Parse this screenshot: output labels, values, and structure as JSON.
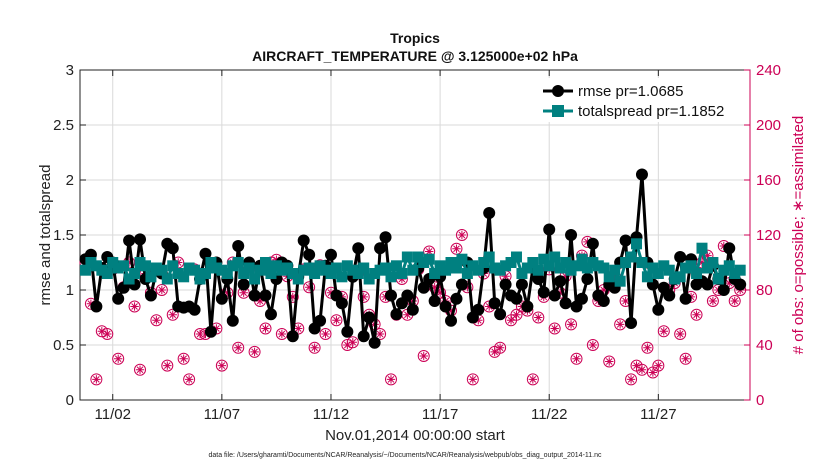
{
  "chart_data": {
    "type": "line",
    "title": "Tropics",
    "subtitle": "AIRCRAFT_TEMPERATURE @ 3.125000e+02 hPa",
    "xlabel": "Nov.01,2014 00:00:00 start",
    "ylabel": "rmse and totalspread",
    "ylabel_right": "# of obs: o=possible; ∗=assimilated",
    "footnote": "data file: /Users/gharamti/Documents/NCAR/Reanalysis/~/Documents/NCAR/Reanalysis/webpub/obs_diag_output_2014-11.nc",
    "xlim": [
      0.5,
      31.2
    ],
    "ylim": [
      0,
      3
    ],
    "ylim_right": [
      0,
      240
    ],
    "x_ticks": [
      2,
      7,
      12,
      17,
      22,
      27
    ],
    "x_ticklabels": [
      "11/02",
      "11/07",
      "11/12",
      "11/17",
      "11/22",
      "11/27"
    ],
    "y_ticks": [
      0,
      0.5,
      1,
      1.5,
      2,
      2.5,
      3
    ],
    "y_ticklabels": [
      "0",
      "0.5",
      "1",
      "1.5",
      "2",
      "2.5",
      "3"
    ],
    "y_right_ticks": [
      0,
      40,
      80,
      120,
      160,
      200,
      240
    ],
    "y_right_ticklabels": [
      "0",
      "40",
      "80",
      "120",
      "160",
      "200",
      "240"
    ],
    "legend_position": "top-right",
    "colors": {
      "rmse": "#000000",
      "totalspread": "#008080",
      "obs": "#cc0055"
    },
    "series": [
      {
        "name": "rmse",
        "legend": "rmse pr=1.0685",
        "axis": "left",
        "marker": "circle",
        "x": [
          0.75,
          1.0,
          1.25,
          1.5,
          1.75,
          2.0,
          2.25,
          2.5,
          2.75,
          3.0,
          3.25,
          3.5,
          3.75,
          4.0,
          4.25,
          4.5,
          4.75,
          5.0,
          5.25,
          5.5,
          5.75,
          6.0,
          6.25,
          6.5,
          6.75,
          7.0,
          7.25,
          7.5,
          7.75,
          8.0,
          8.25,
          8.5,
          8.75,
          9.0,
          9.25,
          9.5,
          9.75,
          10.0,
          10.25,
          10.5,
          10.75,
          11.0,
          11.25,
          11.5,
          11.75,
          12.0,
          12.25,
          12.5,
          12.75,
          13.0,
          13.25,
          13.5,
          13.75,
          14.0,
          14.25,
          14.5,
          14.75,
          15.0,
          15.25,
          15.5,
          15.75,
          16.0,
          16.25,
          16.5,
          16.75,
          17.0,
          17.25,
          17.5,
          17.75,
          18.0,
          18.25,
          18.5,
          18.75,
          19.0,
          19.25,
          19.5,
          19.75,
          20.0,
          20.25,
          20.5,
          20.75,
          21.0,
          21.25,
          21.5,
          21.75,
          22.0,
          22.25,
          22.5,
          22.75,
          23.0,
          23.25,
          23.5,
          23.75,
          24.0,
          24.25,
          24.5,
          24.75,
          25.0,
          25.25,
          25.5,
          25.75,
          26.0,
          26.25,
          26.5,
          26.75,
          27.0,
          27.25,
          27.5,
          27.75,
          28.0,
          28.25,
          28.5,
          28.75,
          29.0,
          29.25,
          29.5,
          29.75,
          30.0,
          30.25,
          30.5,
          30.75
        ],
        "values": [
          1.28,
          1.32,
          0.85,
          1.2,
          1.3,
          1.25,
          0.92,
          1.02,
          1.45,
          1.05,
          1.46,
          1.1,
          0.95,
          1.18,
          1.15,
          1.42,
          1.38,
          0.85,
          0.84,
          0.85,
          0.82,
          1.1,
          1.33,
          0.62,
          1.25,
          0.92,
          1.1,
          0.72,
          1.4,
          1.05,
          1.25,
          0.95,
          1.22,
          0.95,
          0.78,
          1.1,
          1.25,
          1.22,
          0.58,
          1.12,
          1.45,
          1.32,
          0.65,
          0.72,
          1.22,
          1.32,
          0.95,
          0.88,
          0.62,
          1.12,
          1.38,
          0.58,
          0.75,
          0.52,
          1.38,
          1.48,
          0.95,
          0.78,
          0.88,
          0.95,
          0.82,
          1.2,
          1.02,
          1.1,
          0.9,
          1.12,
          0.85,
          0.72,
          0.92,
          1.05,
          1.25,
          0.75,
          0.82,
          1.2,
          1.7,
          0.88,
          0.78,
          1.05,
          0.95,
          0.92,
          1.05,
          0.85,
          1.2,
          1.1,
          0.98,
          1.55,
          0.95,
          1.08,
          0.88,
          1.5,
          0.85,
          0.92,
          1.1,
          1.42,
          0.95,
          0.9,
          1.05,
          1.02,
          1.25,
          1.45,
          0.7,
          1.48,
          2.05,
          1.25,
          1.05,
          0.82,
          1.02,
          0.95,
          1.1,
          1.3,
          0.92,
          1.28,
          1.05,
          1.08,
          1.05,
          1.22,
          1.1,
          1.0,
          1.38,
          1.1,
          1.05
        ],
        "pr": "1.0685"
      },
      {
        "name": "totalspread",
        "legend": "totalspread pr=1.1852",
        "axis": "left",
        "marker": "square",
        "x": [
          0.75,
          1.0,
          1.25,
          1.5,
          1.75,
          2.0,
          2.25,
          2.5,
          2.75,
          3.0,
          3.25,
          3.5,
          3.75,
          4.0,
          4.25,
          4.5,
          4.75,
          5.0,
          5.25,
          5.5,
          5.75,
          6.0,
          6.25,
          6.5,
          6.75,
          7.0,
          7.25,
          7.5,
          7.75,
          8.0,
          8.25,
          8.5,
          8.75,
          9.0,
          9.25,
          9.5,
          9.75,
          10.0,
          10.25,
          10.5,
          10.75,
          11.0,
          11.25,
          11.5,
          11.75,
          12.0,
          12.25,
          12.5,
          12.75,
          13.0,
          13.25,
          13.5,
          13.75,
          14.0,
          14.25,
          14.5,
          14.75,
          15.0,
          15.25,
          15.5,
          15.75,
          16.0,
          16.25,
          16.5,
          16.75,
          17.0,
          17.25,
          17.5,
          17.75,
          18.0,
          18.25,
          18.5,
          18.75,
          19.0,
          19.25,
          19.5,
          19.75,
          20.0,
          20.25,
          20.5,
          20.75,
          21.0,
          21.25,
          21.5,
          21.75,
          22.0,
          22.25,
          22.5,
          22.75,
          23.0,
          23.25,
          23.5,
          23.75,
          24.0,
          24.25,
          24.5,
          24.75,
          25.0,
          25.25,
          25.5,
          25.75,
          26.0,
          26.25,
          26.5,
          26.75,
          27.0,
          27.25,
          27.5,
          27.75,
          28.0,
          28.25,
          28.5,
          28.75,
          29.0,
          29.25,
          29.5,
          29.75,
          30.0,
          30.25,
          30.5,
          30.75
        ],
        "values": [
          1.18,
          1.25,
          1.22,
          1.18,
          1.15,
          1.25,
          1.2,
          1.22,
          1.1,
          1.15,
          1.25,
          1.22,
          1.12,
          1.2,
          1.18,
          1.1,
          1.22,
          1.15,
          1.12,
          1.2,
          1.18,
          1.1,
          1.15,
          1.25,
          1.2,
          1.18,
          1.15,
          1.22,
          1.25,
          1.15,
          1.2,
          1.1,
          1.18,
          1.25,
          1.15,
          1.22,
          1.18,
          1.2,
          1.15,
          1.1,
          1.18,
          1.2,
          1.15,
          1.22,
          1.18,
          1.15,
          1.2,
          1.12,
          1.22,
          1.18,
          1.15,
          1.2,
          1.1,
          1.15,
          1.18,
          1.2,
          1.12,
          1.22,
          1.15,
          1.3,
          1.18,
          1.3,
          1.25,
          1.28,
          1.15,
          1.22,
          1.18,
          1.25,
          1.2,
          1.28,
          1.15,
          1.22,
          1.18,
          1.25,
          1.3,
          1.2,
          1.18,
          1.22,
          1.25,
          1.3,
          1.15,
          1.2,
          1.25,
          1.18,
          1.28,
          1.22,
          1.3,
          1.2,
          1.25,
          1.18,
          1.22,
          1.28,
          1.2,
          1.25,
          1.22,
          1.2,
          1.12,
          1.18,
          1.08,
          1.25,
          1.3,
          1.42,
          1.25,
          1.12,
          1.2,
          1.15,
          1.22,
          1.18,
          1.1,
          1.12,
          1.2,
          1.22,
          1.15,
          1.38,
          1.2,
          1.25,
          1.1,
          1.18,
          1.22,
          1.15,
          1.18
        ],
        "pr": "1.1852"
      },
      {
        "name": "obs possible",
        "axis": "right",
        "marker": "open-circle",
        "x": [
          0.75,
          1.0,
          1.25,
          1.5,
          1.75,
          2.0,
          2.25,
          2.5,
          2.75,
          3.0,
          3.25,
          3.5,
          3.75,
          4.0,
          4.25,
          4.5,
          4.75,
          5.0,
          5.25,
          5.5,
          5.75,
          6.0,
          6.25,
          6.5,
          6.75,
          7.0,
          7.25,
          7.5,
          7.75,
          8.0,
          8.25,
          8.5,
          8.75,
          9.0,
          9.25,
          9.5,
          9.75,
          10.0,
          10.25,
          10.5,
          10.75,
          11.0,
          11.25,
          11.5,
          11.75,
          12.0,
          12.25,
          12.5,
          12.75,
          13.0,
          13.25,
          13.5,
          13.75,
          14.0,
          14.25,
          14.5,
          14.75,
          15.0,
          15.25,
          15.5,
          15.75,
          16.0,
          16.25,
          16.5,
          16.75,
          17.0,
          17.25,
          17.5,
          17.75,
          18.0,
          18.25,
          18.5,
          18.75,
          19.0,
          19.25,
          19.5,
          19.75,
          20.0,
          20.25,
          20.5,
          20.75,
          21.0,
          21.25,
          21.5,
          21.75,
          22.0,
          22.25,
          22.5,
          22.75,
          23.0,
          23.25,
          23.5,
          23.75,
          24.0,
          24.25,
          24.5,
          24.75,
          25.0,
          25.25,
          25.5,
          25.75,
          26.0,
          26.25,
          26.5,
          26.75,
          27.0,
          27.25,
          27.5,
          27.75,
          28.0,
          28.25,
          28.5,
          28.75,
          29.0,
          29.25,
          29.5,
          29.75,
          30.0,
          30.25,
          30.5,
          30.75
        ],
        "values": [
          100,
          70,
          15,
          50,
          48,
          95,
          30,
          82,
          100,
          68,
          22,
          92,
          78,
          58,
          80,
          25,
          62,
          100,
          30,
          15,
          95,
          48,
          48,
          98,
          52,
          25,
          78,
          100,
          38,
          78,
          95,
          35,
          72,
          52,
          100,
          102,
          48,
          90,
          75,
          52,
          95,
          82,
          38,
          98,
          48,
          78,
          58,
          75,
          40,
          42,
          92,
          75,
          62,
          55,
          48,
          75,
          15,
          62,
          88,
          62,
          72,
          95,
          32,
          108,
          82,
          78,
          72,
          65,
          110,
          120,
          82,
          15,
          58,
          92,
          68,
          35,
          38,
          90,
          58,
          62,
          68,
          65,
          15,
          60,
          75,
          95,
          52,
          78,
          90,
          55,
          30,
          105,
          115,
          40,
          72,
          80,
          28,
          90,
          55,
          72,
          15,
          25,
          22,
          38,
          20,
          25,
          50,
          80,
          85,
          48,
          30,
          75,
          62,
          100,
          105,
          72,
          80,
          112,
          85,
          72,
          80
        ],
        "values_note": "approximate readings from figure"
      },
      {
        "name": "obs assimilated",
        "axis": "right",
        "marker": "asterisk",
        "x": [
          0.75,
          1.0,
          1.25,
          1.5,
          1.75,
          2.0,
          2.25,
          2.5,
          2.75,
          3.0,
          3.25,
          3.5,
          3.75,
          4.0,
          4.25,
          4.5,
          4.75,
          5.0,
          5.25,
          5.5,
          5.75,
          6.0,
          6.25,
          6.5,
          6.75,
          7.0,
          7.25,
          7.5,
          7.75,
          8.0,
          8.25,
          8.5,
          8.75,
          9.0,
          9.25,
          9.5,
          9.75,
          10.0,
          10.25,
          10.5,
          10.75,
          11.0,
          11.25,
          11.5,
          11.75,
          12.0,
          12.25,
          12.5,
          12.75,
          13.0,
          13.25,
          13.5,
          13.75,
          14.0,
          14.25,
          14.5,
          14.75,
          15.0,
          15.25,
          15.5,
          15.75,
          16.0,
          16.25,
          16.5,
          16.75,
          17.0,
          17.25,
          17.5,
          17.75,
          18.0,
          18.25,
          18.5,
          18.75,
          19.0,
          19.25,
          19.5,
          19.75,
          20.0,
          20.25,
          20.5,
          20.75,
          21.0,
          21.25,
          21.5,
          21.75,
          22.0,
          22.25,
          22.5,
          22.75,
          23.0,
          23.25,
          23.5,
          23.75,
          24.0,
          24.25,
          24.5,
          24.75,
          25.0,
          25.25,
          25.5,
          25.75,
          26.0,
          26.25,
          26.5,
          26.75,
          27.0,
          27.25,
          27.5,
          27.75,
          28.0,
          28.25,
          28.5,
          28.75,
          29.0,
          29.25,
          29.5,
          29.75,
          30.0,
          30.25,
          30.5,
          30.75
        ],
        "values": [
          100,
          70,
          15,
          50,
          48,
          95,
          30,
          82,
          100,
          68,
          22,
          92,
          78,
          58,
          80,
          25,
          62,
          100,
          30,
          15,
          95,
          48,
          48,
          98,
          52,
          25,
          78,
          100,
          38,
          78,
          95,
          35,
          72,
          52,
          100,
          102,
          48,
          90,
          75,
          52,
          95,
          82,
          38,
          98,
          48,
          78,
          58,
          75,
          40,
          42,
          92,
          75,
          62,
          55,
          48,
          75,
          15,
          62,
          88,
          62,
          72,
          95,
          32,
          108,
          82,
          78,
          72,
          65,
          110,
          120,
          82,
          15,
          58,
          92,
          68,
          35,
          38,
          90,
          58,
          62,
          68,
          65,
          15,
          60,
          75,
          95,
          52,
          78,
          90,
          55,
          30,
          105,
          115,
          40,
          72,
          80,
          28,
          90,
          55,
          72,
          15,
          25,
          22,
          38,
          20,
          25,
          50,
          80,
          85,
          48,
          30,
          75,
          62,
          100,
          105,
          72,
          80,
          112,
          85,
          72,
          80
        ],
        "values_note": "approximate readings from figure"
      }
    ]
  }
}
